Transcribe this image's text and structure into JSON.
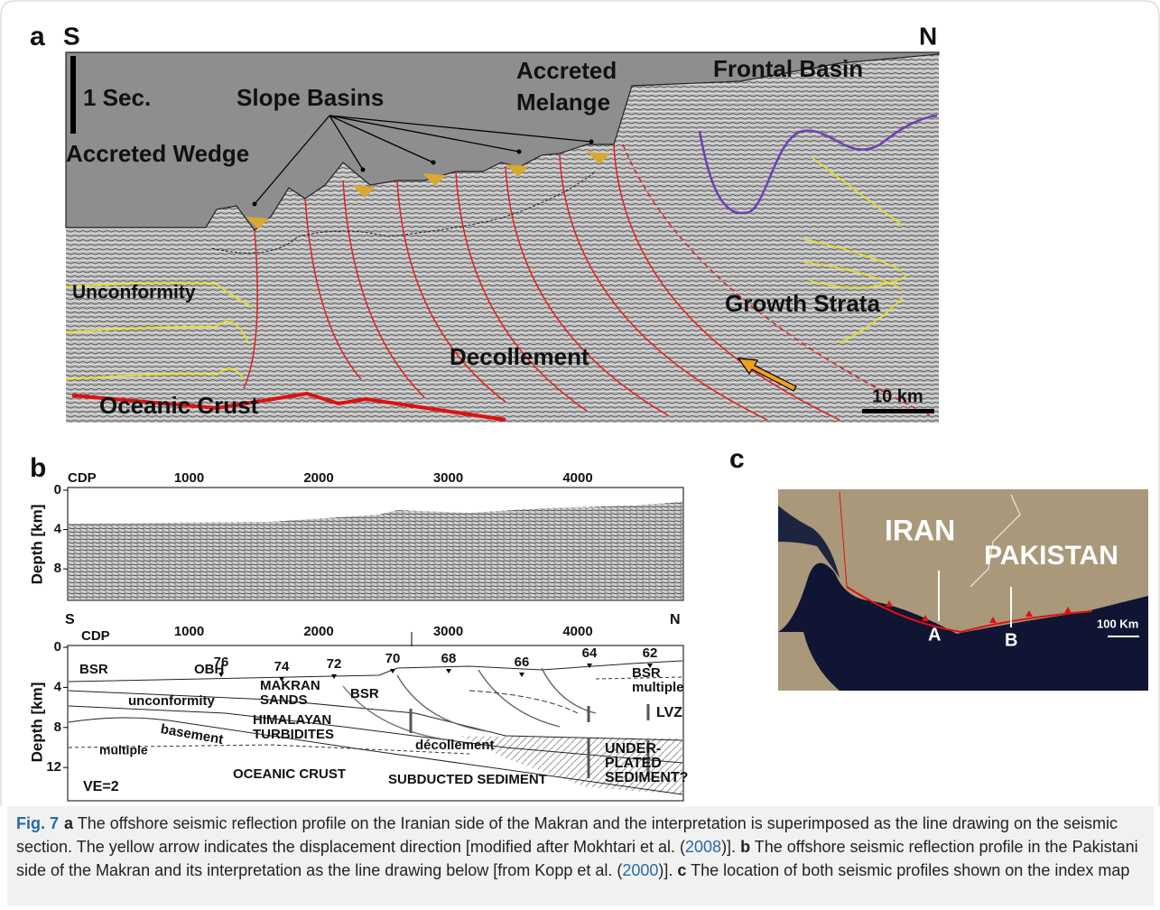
{
  "panels": {
    "a": {
      "label": "a",
      "left": "S",
      "right": "N",
      "scale_vertical": "1 Sec.",
      "scale_horizontal": "10 km",
      "annotations": [
        [
          "Accreted Wedge"
        ],
        [
          "Slope Basins"
        ],
        [
          "Accreted",
          "Melange"
        ],
        [
          "Frontal Basin"
        ],
        [
          "Unconformity"
        ],
        [
          "Growth Strata"
        ],
        [
          "Decollement"
        ],
        [
          "Oceanic Crust"
        ]
      ]
    },
    "b": {
      "label": "b",
      "top": {
        "x_axis_title": "CDP",
        "x_ticks": [
          1000,
          2000,
          3000,
          4000
        ],
        "y_axis_title": "Depth [km]",
        "y_ticks": [
          0,
          4,
          8
        ]
      },
      "bottom": {
        "left": "S",
        "right": "N",
        "x_axis_title": "CDP",
        "x_ticks": [
          1000,
          2000,
          3000,
          4000
        ],
        "y_axis_title": "Depth [km]",
        "y_ticks": [
          0,
          4,
          8,
          12
        ],
        "stations": [
          76,
          74,
          72,
          70,
          68,
          66,
          64,
          62
        ],
        "annotations": [
          [
            "BSR"
          ],
          [
            "OBH"
          ],
          [
            "MAKRAN",
            "SANDS"
          ],
          [
            "BSR"
          ],
          [
            "unconformity"
          ],
          [
            "HIMALAYAN",
            "TURBIDITES"
          ],
          [
            "basement"
          ],
          [
            "multiple"
          ],
          [
            "décollement"
          ],
          [
            "BSR",
            "multiple"
          ],
          [
            "LVZ"
          ],
          [
            "UNDER-",
            "PLATED",
            "SEDIMENT?"
          ],
          [
            "OCEANIC CRUST"
          ],
          [
            "SUBDUCTED SEDIMENT"
          ]
        ],
        "note": "VE=2"
      }
    },
    "c": {
      "label": "c",
      "countries": [
        "IRAN",
        "PAKISTAN"
      ],
      "profiles": [
        "A",
        "B"
      ],
      "scale": "100 Km"
    }
  },
  "caption": [
    {
      "text": "Fig. 7",
      "style": "fig"
    },
    {
      "text": "a",
      "style": "bold"
    },
    {
      "text": " The offshore seismic reflection profile on the Iranian side of the Makran and the interpretation is superimposed as the line drawing on the seismic section. The yellow arrow indicates the displacement direction [modified after Mokhtari et al. (",
      "style": "plain"
    },
    {
      "text": "2008",
      "style": "link"
    },
    {
      "text": ")]. ",
      "style": "plain"
    },
    {
      "text": "b",
      "style": "bold"
    },
    {
      "text": " The offshore seismic reflection profile in the Pakistani side of the Makran and its interpretation as the line drawing below [from Kopp et al. (",
      "style": "plain"
    },
    {
      "text": "2000",
      "style": "link"
    },
    {
      "text": ")]. ",
      "style": "plain"
    },
    {
      "text": "c",
      "style": "bold"
    },
    {
      "text": " The location of both seismic profiles shown on the index map",
      "style": "plain"
    }
  ]
}
